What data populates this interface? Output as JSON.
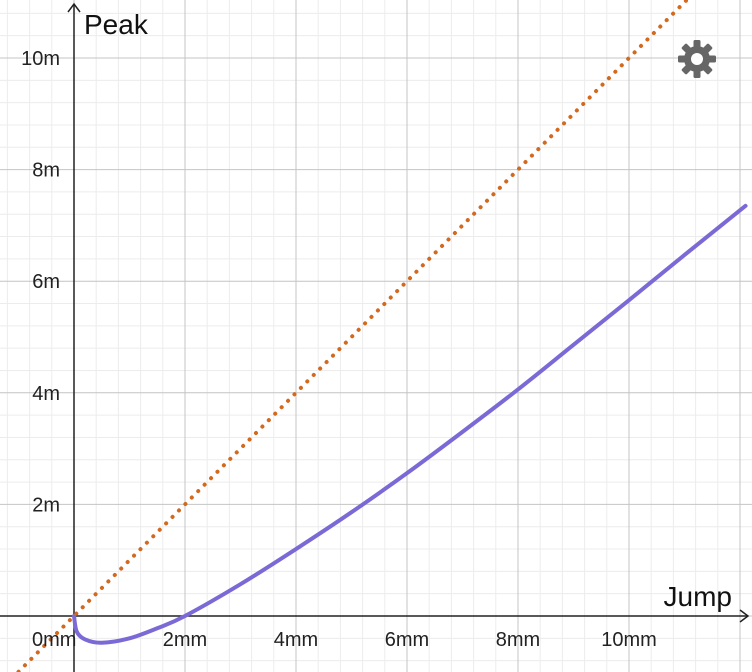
{
  "chart_data": {
    "type": "line",
    "xlabel": "Jump",
    "ylabel": "Peak",
    "xlim": [
      -1.2,
      12.0
    ],
    "ylim": [
      -1.0,
      11.0
    ],
    "grid": true,
    "x_ticks": [
      {
        "value": 0,
        "label": "0mm"
      },
      {
        "value": 2,
        "label": "2mm"
      },
      {
        "value": 4,
        "label": "4mm"
      },
      {
        "value": 6,
        "label": "6mm"
      },
      {
        "value": 8,
        "label": "8mm"
      },
      {
        "value": 10,
        "label": "10mm"
      }
    ],
    "y_ticks": [
      {
        "value": 2,
        "label": "2m"
      },
      {
        "value": 4,
        "label": "4m"
      },
      {
        "value": 6,
        "label": "6m"
      },
      {
        "value": 8,
        "label": "8m"
      },
      {
        "value": 10,
        "label": "10m"
      }
    ],
    "series": [
      {
        "style": "solid",
        "color": "#7b6ad6",
        "x": [
          0.0,
          0.05,
          0.2,
          0.5,
          1.0,
          1.5,
          2.0,
          3.0,
          4.0,
          5.0,
          6.0,
          7.0,
          8.0,
          9.0,
          10.0,
          11.0,
          12.1
        ],
        "y": [
          0.0,
          -0.28,
          -0.42,
          -0.48,
          -0.4,
          -0.22,
          0.0,
          0.57,
          1.2,
          1.86,
          2.56,
          3.3,
          4.06,
          4.86,
          5.66,
          6.47,
          7.35
        ]
      },
      {
        "style": "dotted",
        "color": "#d2691e",
        "x": [
          -1.0,
          11.6
        ],
        "y": [
          -1.0,
          11.6
        ]
      }
    ]
  },
  "ui": {
    "settings_icon": "gear-icon",
    "settings_color": "#666666"
  }
}
